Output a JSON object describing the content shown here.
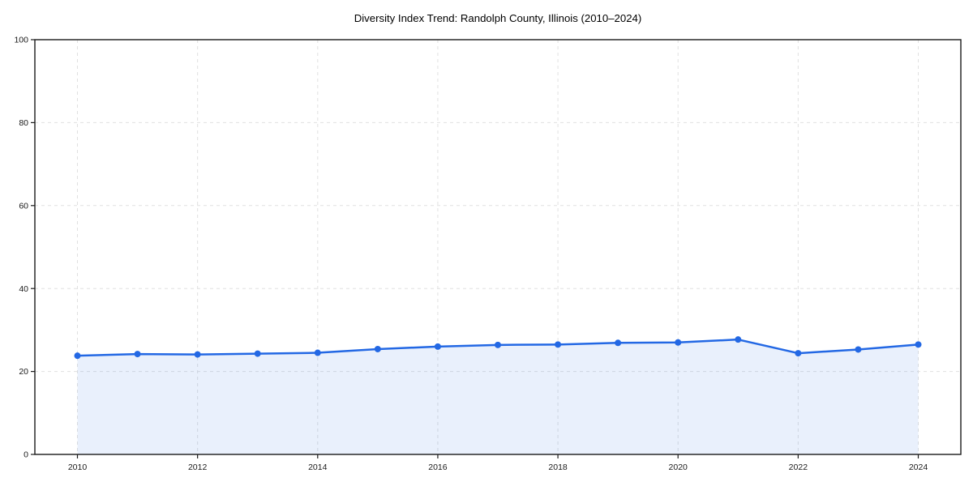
{
  "window": {
    "background": "#ffffff"
  },
  "chart_data": {
    "type": "area",
    "title": "Diversity Index Trend: Randolph County, Illinois (2010–2024)",
    "x": [
      2010,
      2011,
      2012,
      2013,
      2014,
      2015,
      2016,
      2017,
      2018,
      2019,
      2020,
      2021,
      2022,
      2023,
      2024
    ],
    "series": [
      {
        "name": "Diversity Index",
        "values": [
          23.8,
          24.2,
          24.1,
          24.3,
          24.5,
          25.4,
          26.0,
          26.4,
          26.5,
          26.9,
          27.0,
          27.7,
          24.4,
          25.3,
          26.5
        ]
      }
    ],
    "xlabel": "",
    "ylabel": "",
    "ylim": [
      0,
      100
    ],
    "yticks": [
      0,
      20,
      40,
      60,
      80,
      100
    ],
    "xticks": [
      2010,
      2012,
      2014,
      2016,
      2018,
      2020,
      2022,
      2024
    ],
    "grid": true,
    "grid_style": "dashed",
    "legend": false,
    "colors": {
      "line": "#2368e4",
      "marker": "#2368e4",
      "area_fill": "rgba(35,104,228,0.10)",
      "grid": "#e0e0e0",
      "axis": "#1a1a1a",
      "tick_text": "#1a1a1a",
      "title_text": "#000000",
      "background": "#ffffff"
    }
  }
}
